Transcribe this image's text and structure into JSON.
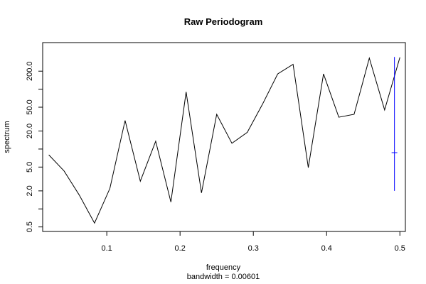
{
  "chart_data": {
    "type": "line",
    "title": "Raw Periodogram",
    "xlabel": "frequency",
    "sublabel": "bandwidth = 0.00601",
    "ylabel": "spectrum",
    "y_scale": "log",
    "xlim": [
      0.0125,
      0.5075
    ],
    "ylim": [
      0.42,
      600
    ],
    "x_ticks": [
      0.1,
      0.2,
      0.3,
      0.4,
      0.5
    ],
    "x_tick_labels": [
      "0.1",
      "0.2",
      "0.3",
      "0.4",
      "0.5"
    ],
    "y_ticks": [
      0.5,
      1,
      2,
      5,
      10,
      20,
      50,
      100,
      200
    ],
    "y_tick_labels": [
      "0.5",
      "",
      "2.0",
      "5.0",
      "",
      "20.0",
      "50.0",
      "",
      "200.0"
    ],
    "grid": false,
    "series": [
      {
        "color": "#000000",
        "x": [
          0.0208,
          0.0417,
          0.0625,
          0.0833,
          0.1042,
          0.125,
          0.1458,
          0.1667,
          0.1875,
          0.2083,
          0.2292,
          0.25,
          0.2708,
          0.2917,
          0.3125,
          0.3333,
          0.3542,
          0.375,
          0.3958,
          0.4167,
          0.4375,
          0.4583,
          0.4792,
          0.5
        ],
        "y": [
          8,
          4.3,
          1.7,
          0.58,
          2.2,
          30,
          2.9,
          13.5,
          1.3,
          90,
          1.85,
          38,
          12.5,
          19,
          56,
          180,
          260,
          4.9,
          180,
          34,
          38,
          330,
          45,
          340
        ]
      }
    ],
    "ci_bar": {
      "color": "#0000ff",
      "x": 0.4926,
      "lower": 2.0,
      "upper": 345,
      "center": 8.7
    }
  }
}
